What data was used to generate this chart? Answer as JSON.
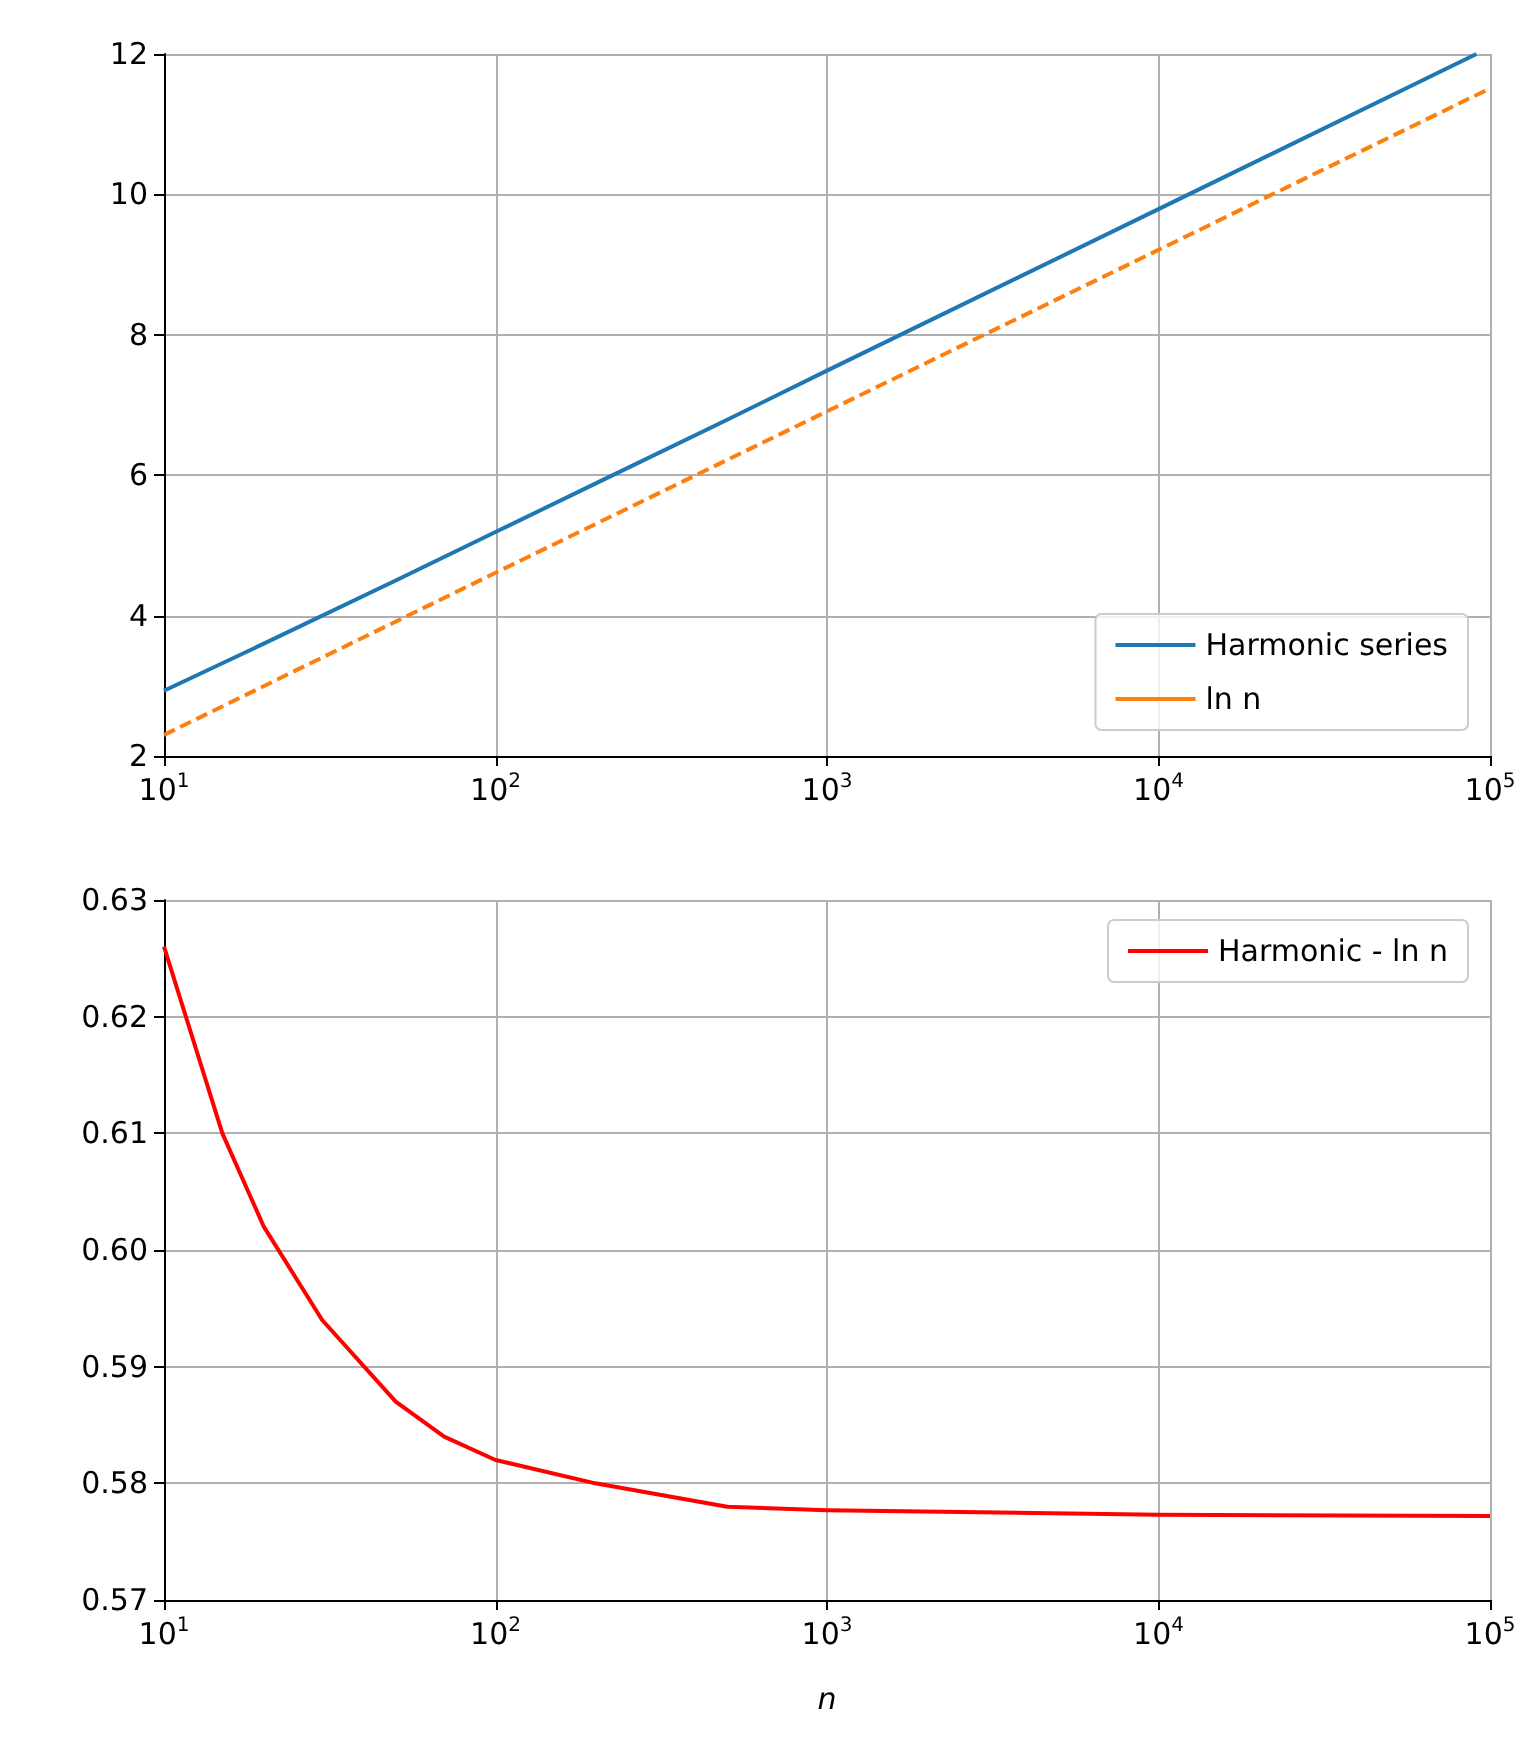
{
  "chart_data": [
    {
      "type": "line",
      "log": "x",
      "grid": true,
      "legend": "bottom right",
      "xlim": [
        10,
        100000
      ],
      "ylim": [
        2,
        12
      ],
      "xticks": [
        {
          "value": 10,
          "label": "10$^{1}$"
        },
        {
          "value": 100,
          "label": "10$^{2}$"
        },
        {
          "value": 1000,
          "label": "10$^{3}$"
        },
        {
          "value": 10000,
          "label": "10$^{4}$"
        },
        {
          "value": 100000,
          "label": "10$^{5}$"
        }
      ],
      "yticks": [
        2,
        4,
        6,
        8,
        10,
        12
      ],
      "series": [
        {
          "name": "Harmonic series",
          "color": "#1f77b4",
          "line_style": "solid",
          "x": [
            10,
            20,
            50,
            100,
            200,
            500,
            1000,
            10000,
            91000
          ],
          "values": [
            2.93,
            3.6,
            4.5,
            5.19,
            5.88,
            6.79,
            7.49,
            9.79,
            12.0
          ]
        },
        {
          "name": "ln n",
          "color": "#ff7f0e",
          "line_style": "dashed",
          "x": [
            10,
            100,
            1000,
            10000,
            100000
          ],
          "values": [
            2.3,
            4.61,
            6.91,
            9.21,
            11.51
          ]
        }
      ]
    },
    {
      "type": "line",
      "log": "x",
      "grid": true,
      "legend": "top right",
      "xlabel": "n",
      "xlim": [
        10,
        100000
      ],
      "ylim": [
        0.57,
        0.63
      ],
      "xticks": [
        {
          "value": 10,
          "label": "10$^{1}$"
        },
        {
          "value": 100,
          "label": "10$^{2}$"
        },
        {
          "value": 1000,
          "label": "10$^{3}$"
        },
        {
          "value": 10000,
          "label": "10$^{4}$"
        },
        {
          "value": 100000,
          "label": "10$^{5}$"
        }
      ],
      "yticks": [
        0.57,
        0.58,
        0.59,
        {
          "value": 0.6,
          "label": "0.60"
        },
        0.61,
        0.62,
        0.63
      ],
      "series": [
        {
          "name": "Harmonic - ln n",
          "color": "#ff0000",
          "line_style": "solid",
          "x": [
            10,
            15,
            20,
            30,
            50,
            70,
            100,
            200,
            500,
            1000,
            10000,
            100000
          ],
          "values": [
            0.626,
            0.61,
            0.602,
            0.594,
            0.587,
            0.584,
            0.582,
            0.58,
            0.578,
            0.5777,
            0.5773,
            0.5772
          ]
        }
      ]
    }
  ]
}
